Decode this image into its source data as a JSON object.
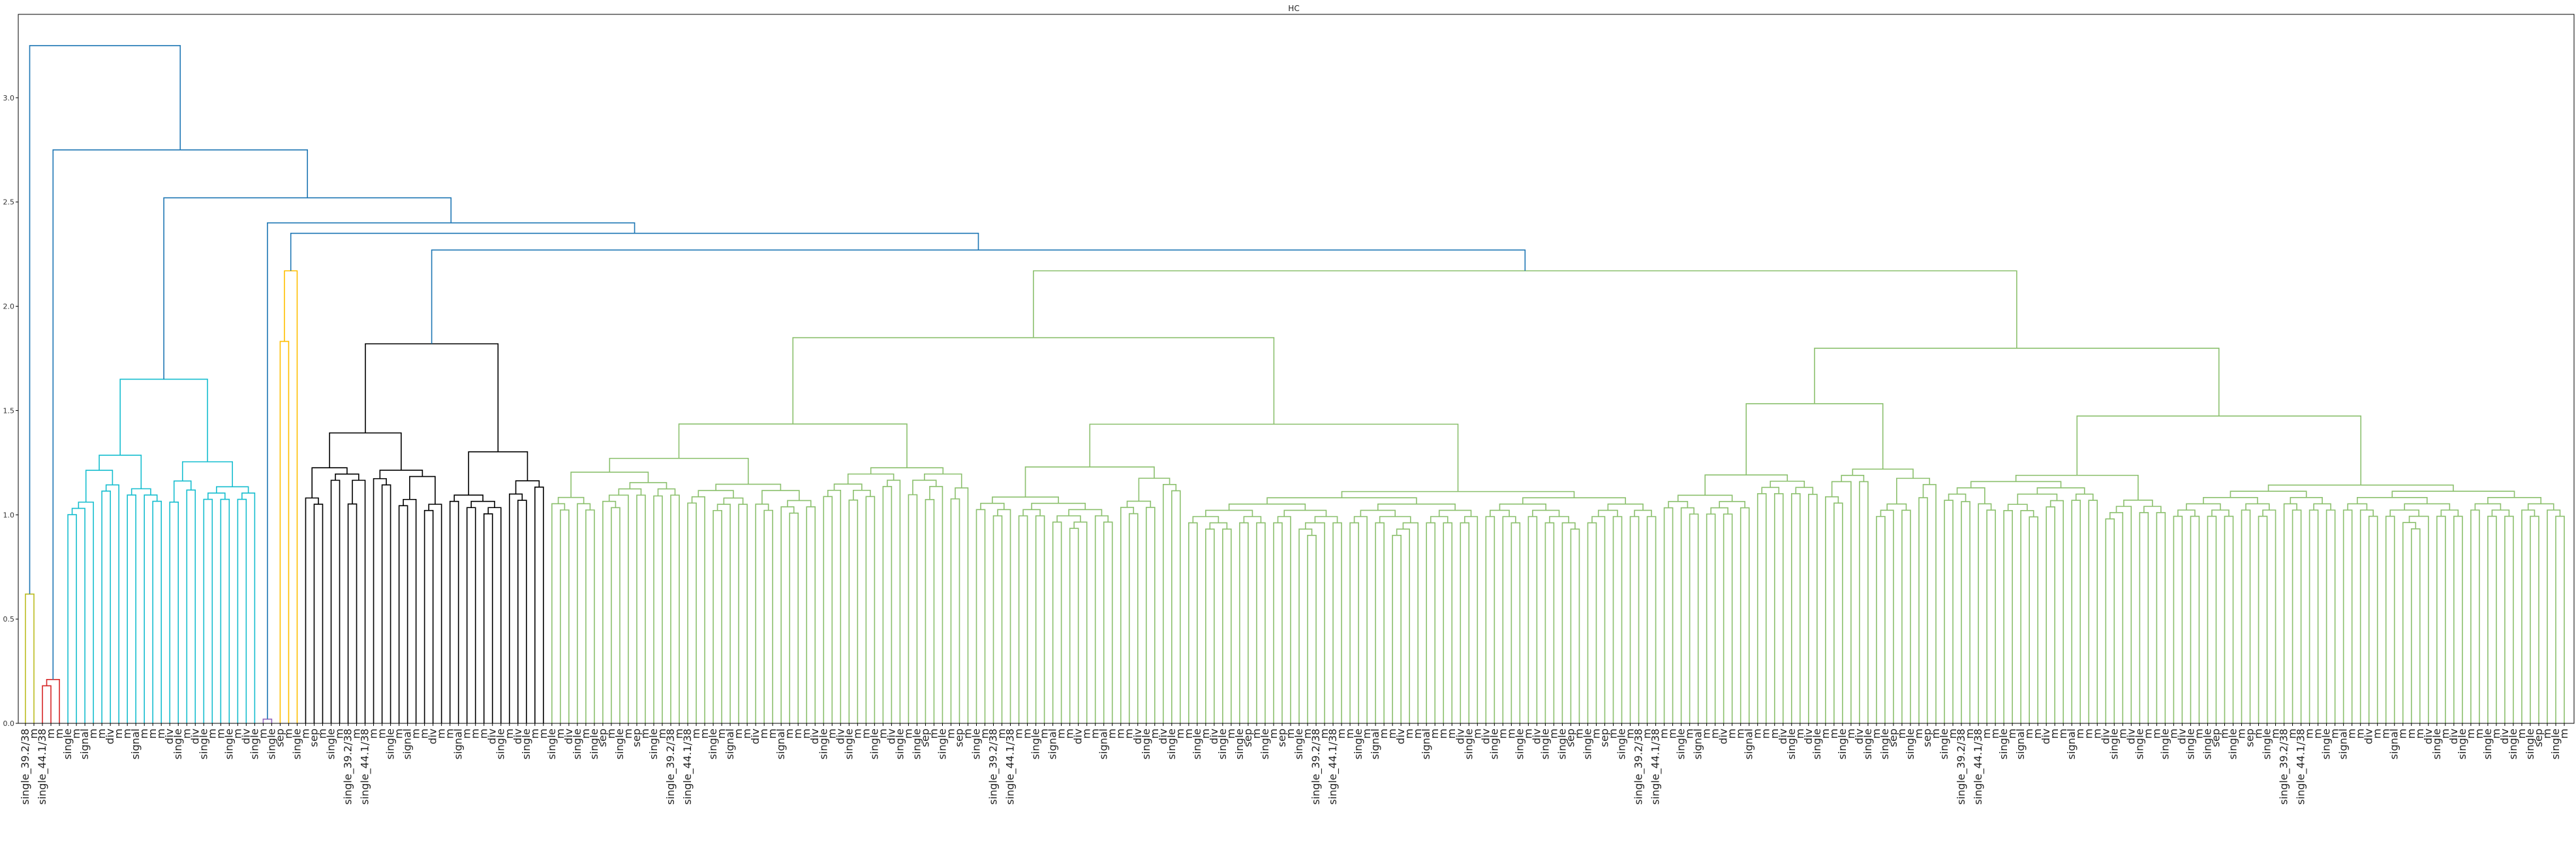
{
  "chart_data": {
    "type": "dendrogram",
    "title": "HC",
    "xlabel": "",
    "ylabel": "",
    "ylim": [
      0,
      3.4
    ],
    "yticks": [
      0.0,
      0.5,
      1.0,
      1.5,
      2.0,
      2.5,
      3.0
    ],
    "ytick_labels": [
      "0.0",
      "0.5",
      "1.0",
      "1.5",
      "2.0",
      "2.5",
      "3.0"
    ],
    "grid": false,
    "legend": "none",
    "n_leaves": 300,
    "clusters": [
      {
        "name": "",
        "color": "#bcbd22",
        "leaf_range": [
          0,
          2
        ],
        "height": 0.62
      },
      {
        "name": "",
        "color": "#d62728",
        "leaf_range": [
          2,
          5
        ],
        "height": 0.21
      },
      {
        "name": "",
        "color": "#17becf",
        "leaf_range": [
          5,
          28
        ],
        "height": 1.65
      },
      {
        "name": "",
        "color": "#9467bd",
        "leaf_range": [
          28,
          30
        ],
        "height": 0.02
      },
      {
        "name": "",
        "color": "#ffbf00",
        "leaf_range": [
          30,
          33
        ],
        "height": 2.17
      },
      {
        "name": "",
        "color": "#000000",
        "leaf_range": [
          33,
          62
        ],
        "height": 1.82
      },
      {
        "name": "",
        "color": "#8cc06e",
        "leaf_range": [
          62,
          300
        ],
        "height": 2.17
      }
    ],
    "link_color": "#1f77b4",
    "merges": [
      {
        "height": 2.27
      },
      {
        "height": 2.35
      },
      {
        "height": 2.4
      },
      {
        "height": 2.52
      },
      {
        "height": 2.75
      },
      {
        "height": 3.25
      }
    ],
    "leaf_label_samples": [
      "single_39.2/38",
      "m",
      "single_44.1/38",
      "m",
      "m",
      "single",
      "m",
      "signal",
      "m",
      "m",
      "div",
      "m",
      "m",
      "signal",
      "m",
      "m",
      "m",
      "div",
      "single",
      "m",
      "div",
      "single",
      "m",
      "m",
      "single",
      "m",
      "div",
      "single",
      "m",
      "single",
      "sep",
      "m",
      "single",
      "m",
      "sep",
      "m",
      "single",
      "m"
    ]
  }
}
